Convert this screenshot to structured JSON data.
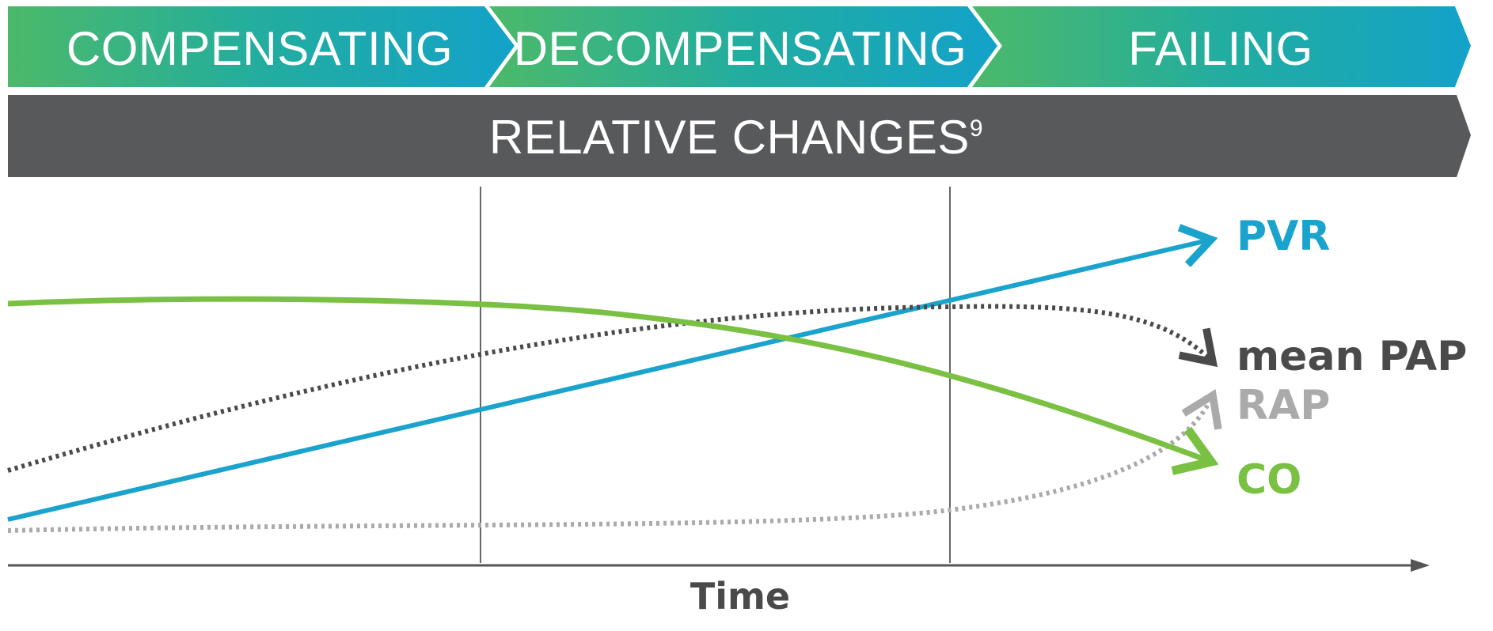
{
  "phases": [
    {
      "label": "COMPENSATING"
    },
    {
      "label": "DECOMPENSATING"
    },
    {
      "label": "FAILING"
    }
  ],
  "banner": {
    "label": "RELATIVE CHANGES",
    "superscript": "9"
  },
  "axis": {
    "x_label": "Time"
  },
  "series": [
    {
      "key": "pvr",
      "label": "PVR",
      "color": "#1aa3cc",
      "style": "solid"
    },
    {
      "key": "mean_pap",
      "label": "mean PAP",
      "color": "#4a4a4a",
      "style": "dotted"
    },
    {
      "key": "rap",
      "label": "RAP",
      "color": "#aaaaaa",
      "style": "dotted"
    },
    {
      "key": "co",
      "label": "CO",
      "color": "#7ac143",
      "style": "solid"
    }
  ],
  "colors": {
    "phase_gradient_start": "#4cb96a",
    "phase_gradient_mid": "#22ad9f",
    "phase_gradient_end": "#13a2c9",
    "banner": "#58595b",
    "divider": "#666666",
    "axis": "#555555"
  }
}
